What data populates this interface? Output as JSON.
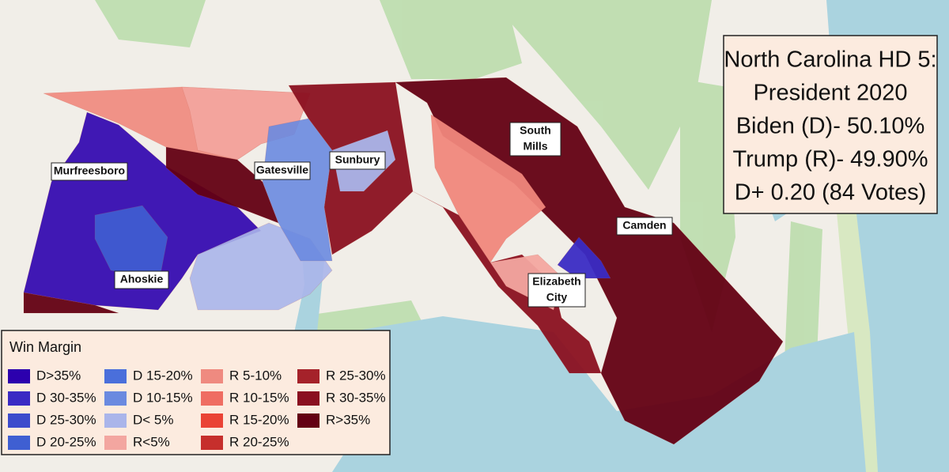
{
  "title": {
    "lines": [
      "North Carolina HD 5:",
      "President 2020",
      "Biden (D)- 50.10%",
      "Trump (R)- 49.90%",
      "D+ 0.20 (84 Votes)"
    ]
  },
  "places": [
    {
      "lines": [
        "Murfreesboro"
      ]
    },
    {
      "lines": [
        "Gatesville"
      ]
    },
    {
      "lines": [
        "Sunbury"
      ]
    },
    {
      "lines": [
        "South",
        "Mills"
      ]
    },
    {
      "lines": [
        "Camden"
      ]
    },
    {
      "lines": [
        "Ahoskie"
      ]
    },
    {
      "lines": [
        "Elizabeth",
        "City"
      ]
    }
  ],
  "legend": {
    "title": "Win Margin",
    "items": [
      {
        "label": "D>35%",
        "color": "#2c00ae"
      },
      {
        "label": "D 30-35%",
        "color": "#3a2bc4"
      },
      {
        "label": "D 25-30%",
        "color": "#3c4ccc"
      },
      {
        "label": "D 20-25%",
        "color": "#3f5fd2"
      },
      {
        "label": "D 15-20%",
        "color": "#4a6fdb"
      },
      {
        "label": "D 10-15%",
        "color": "#6a8ae0"
      },
      {
        "label": "D< 5%",
        "color": "#aab5ea"
      },
      {
        "label": "R<5%",
        "color": "#f3a6a0"
      },
      {
        "label": "R 5-10%",
        "color": "#ef8a80"
      },
      {
        "label": "R 10-15%",
        "color": "#ef6d62"
      },
      {
        "label": "R 15-20%",
        "color": "#ea4335"
      },
      {
        "label": "R 20-25%",
        "color": "#c62f2c"
      },
      {
        "label": "R 25-30%",
        "color": "#a5222a"
      },
      {
        "label": "R 30-35%",
        "color": "#8a1020"
      },
      {
        "label": "R>35%",
        "color": "#630013"
      }
    ]
  }
}
